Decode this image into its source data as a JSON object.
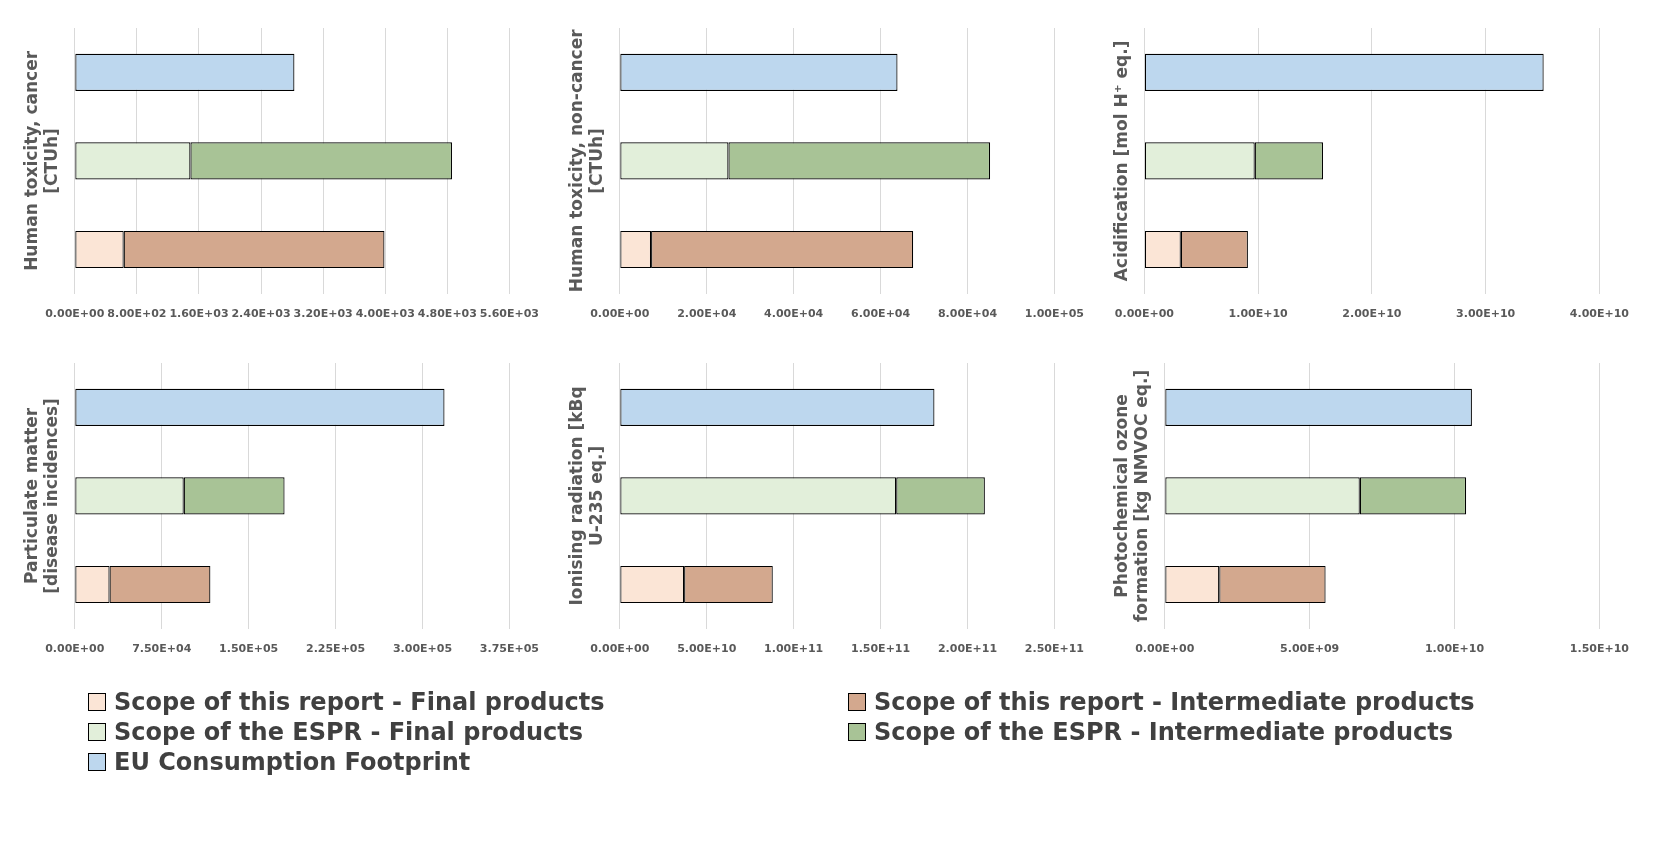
{
  "chart_data": [
    {
      "type": "bar",
      "orientation": "horizontal",
      "stacked": true,
      "categories": [
        null,
        null,
        null
      ],
      "ylabel": "Human toxicity, cancer [CTUh]",
      "xlim": [
        0,
        5600
      ],
      "xticks": [
        {
          "value": 0,
          "label": "0.00E+00"
        },
        {
          "value": 800,
          "label": "8.00E+02"
        },
        {
          "value": 1600,
          "label": "1.60E+03"
        },
        {
          "value": 2400,
          "label": "2.40E+03"
        },
        {
          "value": 3200,
          "label": "3.20E+03"
        },
        {
          "value": 4000,
          "label": "4.00E+03"
        },
        {
          "value": 4800,
          "label": "4.80E+03"
        },
        {
          "value": 5600,
          "label": "5.60E+03"
        }
      ],
      "grid": "x",
      "tick_labels": "x",
      "legend": "bottom",
      "series": [
        {
          "name": "Scope of this report - Final products",
          "color": "#fbe5d6",
          "values": [
            null,
            null,
            630
          ]
        },
        {
          "name": "Scope of this report - Intermediate products",
          "color": "#d3a88e",
          "values": [
            null,
            null,
            3360
          ]
        },
        {
          "name": "Scope of the ESPR - Final products",
          "color": "#e2efda",
          "values": [
            null,
            1490,
            null
          ]
        },
        {
          "name": "Scope of the ESPR - Intermediate products",
          "color": "#a8c396",
          "values": [
            null,
            3370,
            null
          ]
        },
        {
          "name": "EU Consumption Footprint",
          "color": "#bdd7ee",
          "values": [
            2830,
            null,
            null
          ]
        }
      ]
    },
    {
      "type": "bar",
      "orientation": "horizontal",
      "stacked": true,
      "categories": [
        null,
        null,
        null
      ],
      "ylabel": "Human toxicity, non-cancer [CTUh]",
      "xlim": [
        0,
        100000
      ],
      "xticks": [
        {
          "value": 0,
          "label": "0.00E+00"
        },
        {
          "value": 20000,
          "label": "2.00E+04"
        },
        {
          "value": 40000,
          "label": "4.00E+04"
        },
        {
          "value": 60000,
          "label": "6.00E+04"
        },
        {
          "value": 80000,
          "label": "8.00E+04"
        },
        {
          "value": 100000,
          "label": "1.00E+05"
        }
      ],
      "grid": "x",
      "tick_labels": "x",
      "series": [
        {
          "color": "#fbe5d6",
          "values": [
            null,
            null,
            7200
          ]
        },
        {
          "color": "#d3a88e",
          "values": [
            null,
            null,
            60300
          ]
        },
        {
          "color": "#e2efda",
          "values": [
            null,
            25000,
            null
          ]
        },
        {
          "color": "#a8c396",
          "values": [
            null,
            60200,
            null
          ]
        },
        {
          "color": "#bdd7ee",
          "values": [
            63900,
            null,
            null
          ]
        }
      ]
    },
    {
      "type": "bar",
      "orientation": "horizontal",
      "stacked": true,
      "categories": [
        null,
        null,
        null
      ],
      "ylabel": "Acidification [mol H⁺ eq.]",
      "xlim": [
        0,
        40000000000
      ],
      "xticks": [
        {
          "value": 0,
          "label": "0.00E+00"
        },
        {
          "value": 10000000000,
          "label": "1.00E+10"
        },
        {
          "value": 20000000000,
          "label": "2.00E+10"
        },
        {
          "value": 30000000000,
          "label": "3.00E+10"
        },
        {
          "value": 40000000000,
          "label": "4.00E+10"
        }
      ],
      "grid": "x",
      "tick_labels": "x",
      "series": [
        {
          "color": "#fbe5d6",
          "values": [
            null,
            null,
            3200000000
          ]
        },
        {
          "color": "#d3a88e",
          "values": [
            null,
            null,
            5900000000
          ]
        },
        {
          "color": "#e2efda",
          "values": [
            null,
            9700000000,
            null
          ]
        },
        {
          "color": "#a8c396",
          "values": [
            null,
            6000000000,
            null
          ]
        },
        {
          "color": "#bdd7ee",
          "values": [
            35100000000,
            null,
            null
          ]
        }
      ]
    },
    {
      "type": "bar",
      "orientation": "horizontal",
      "stacked": true,
      "categories": [
        null,
        null,
        null
      ],
      "ylabel": "Particulate matter [disease incidences]",
      "xlim": [
        0,
        375000
      ],
      "xticks": [
        {
          "value": 0,
          "label": "0.00E+00"
        },
        {
          "value": 75000,
          "label": "7.50E+04"
        },
        {
          "value": 150000,
          "label": "1.50E+05"
        },
        {
          "value": 225000,
          "label": "2.25E+05"
        },
        {
          "value": 300000,
          "label": "3.00E+05"
        },
        {
          "value": 375000,
          "label": "3.75E+05"
        }
      ],
      "grid": "x",
      "tick_labels": "x",
      "series": [
        {
          "color": "#fbe5d6",
          "values": [
            null,
            null,
            30000
          ]
        },
        {
          "color": "#d3a88e",
          "values": [
            null,
            null,
            87000
          ]
        },
        {
          "color": "#e2efda",
          "values": [
            null,
            94000,
            null
          ]
        },
        {
          "color": "#a8c396",
          "values": [
            null,
            87000,
            null
          ]
        },
        {
          "color": "#bdd7ee",
          "values": [
            319000,
            null,
            null
          ]
        }
      ]
    },
    {
      "type": "bar",
      "orientation": "horizontal",
      "stacked": true,
      "categories": [
        null,
        null,
        null
      ],
      "ylabel": "Ionising radiation [kBq U-235 eq.]",
      "xlim": [
        0,
        250000000000
      ],
      "xticks": [
        {
          "value": 0,
          "label": "0.00E+00"
        },
        {
          "value": 50000000000,
          "label": "5.00E+10"
        },
        {
          "value": 100000000000,
          "label": "1.00E+11"
        },
        {
          "value": 150000000000,
          "label": "1.50E+11"
        },
        {
          "value": 200000000000,
          "label": "2.00E+11"
        },
        {
          "value": 250000000000,
          "label": "2.50E+11"
        }
      ],
      "grid": "x",
      "tick_labels": "x",
      "series": [
        {
          "color": "#fbe5d6",
          "values": [
            null,
            null,
            37000000000
          ]
        },
        {
          "color": "#d3a88e",
          "values": [
            null,
            null,
            51000000000
          ]
        },
        {
          "color": "#e2efda",
          "values": [
            null,
            159000000000,
            null
          ]
        },
        {
          "color": "#a8c396",
          "values": [
            null,
            51000000000,
            null
          ]
        },
        {
          "color": "#bdd7ee",
          "values": [
            181000000000,
            null,
            null
          ]
        }
      ]
    },
    {
      "type": "bar",
      "orientation": "horizontal",
      "stacked": true,
      "categories": [
        null,
        null,
        null
      ],
      "ylabel": "Photochemical ozone formation [kg NMVOC eq.]",
      "xlim": [
        0,
        15000000000
      ],
      "xticks": [
        {
          "value": 0,
          "label": "0.00E+00"
        },
        {
          "value": 5000000000,
          "label": "5.00E+09"
        },
        {
          "value": 10000000000,
          "label": "1.00E+10"
        },
        {
          "value": 15000000000,
          "label": "1.50E+10"
        }
      ],
      "grid": "x",
      "tick_labels": "x",
      "series": [
        {
          "color": "#fbe5d6",
          "values": [
            null,
            null,
            1880000000
          ]
        },
        {
          "color": "#d3a88e",
          "values": [
            null,
            null,
            3670000000
          ]
        },
        {
          "color": "#e2efda",
          "values": [
            null,
            6730000000,
            null
          ]
        },
        {
          "color": "#a8c396",
          "values": [
            null,
            3670000000,
            null
          ]
        },
        {
          "color": "#bdd7ee",
          "values": [
            10600000000,
            null,
            null
          ]
        }
      ]
    }
  ]
}
